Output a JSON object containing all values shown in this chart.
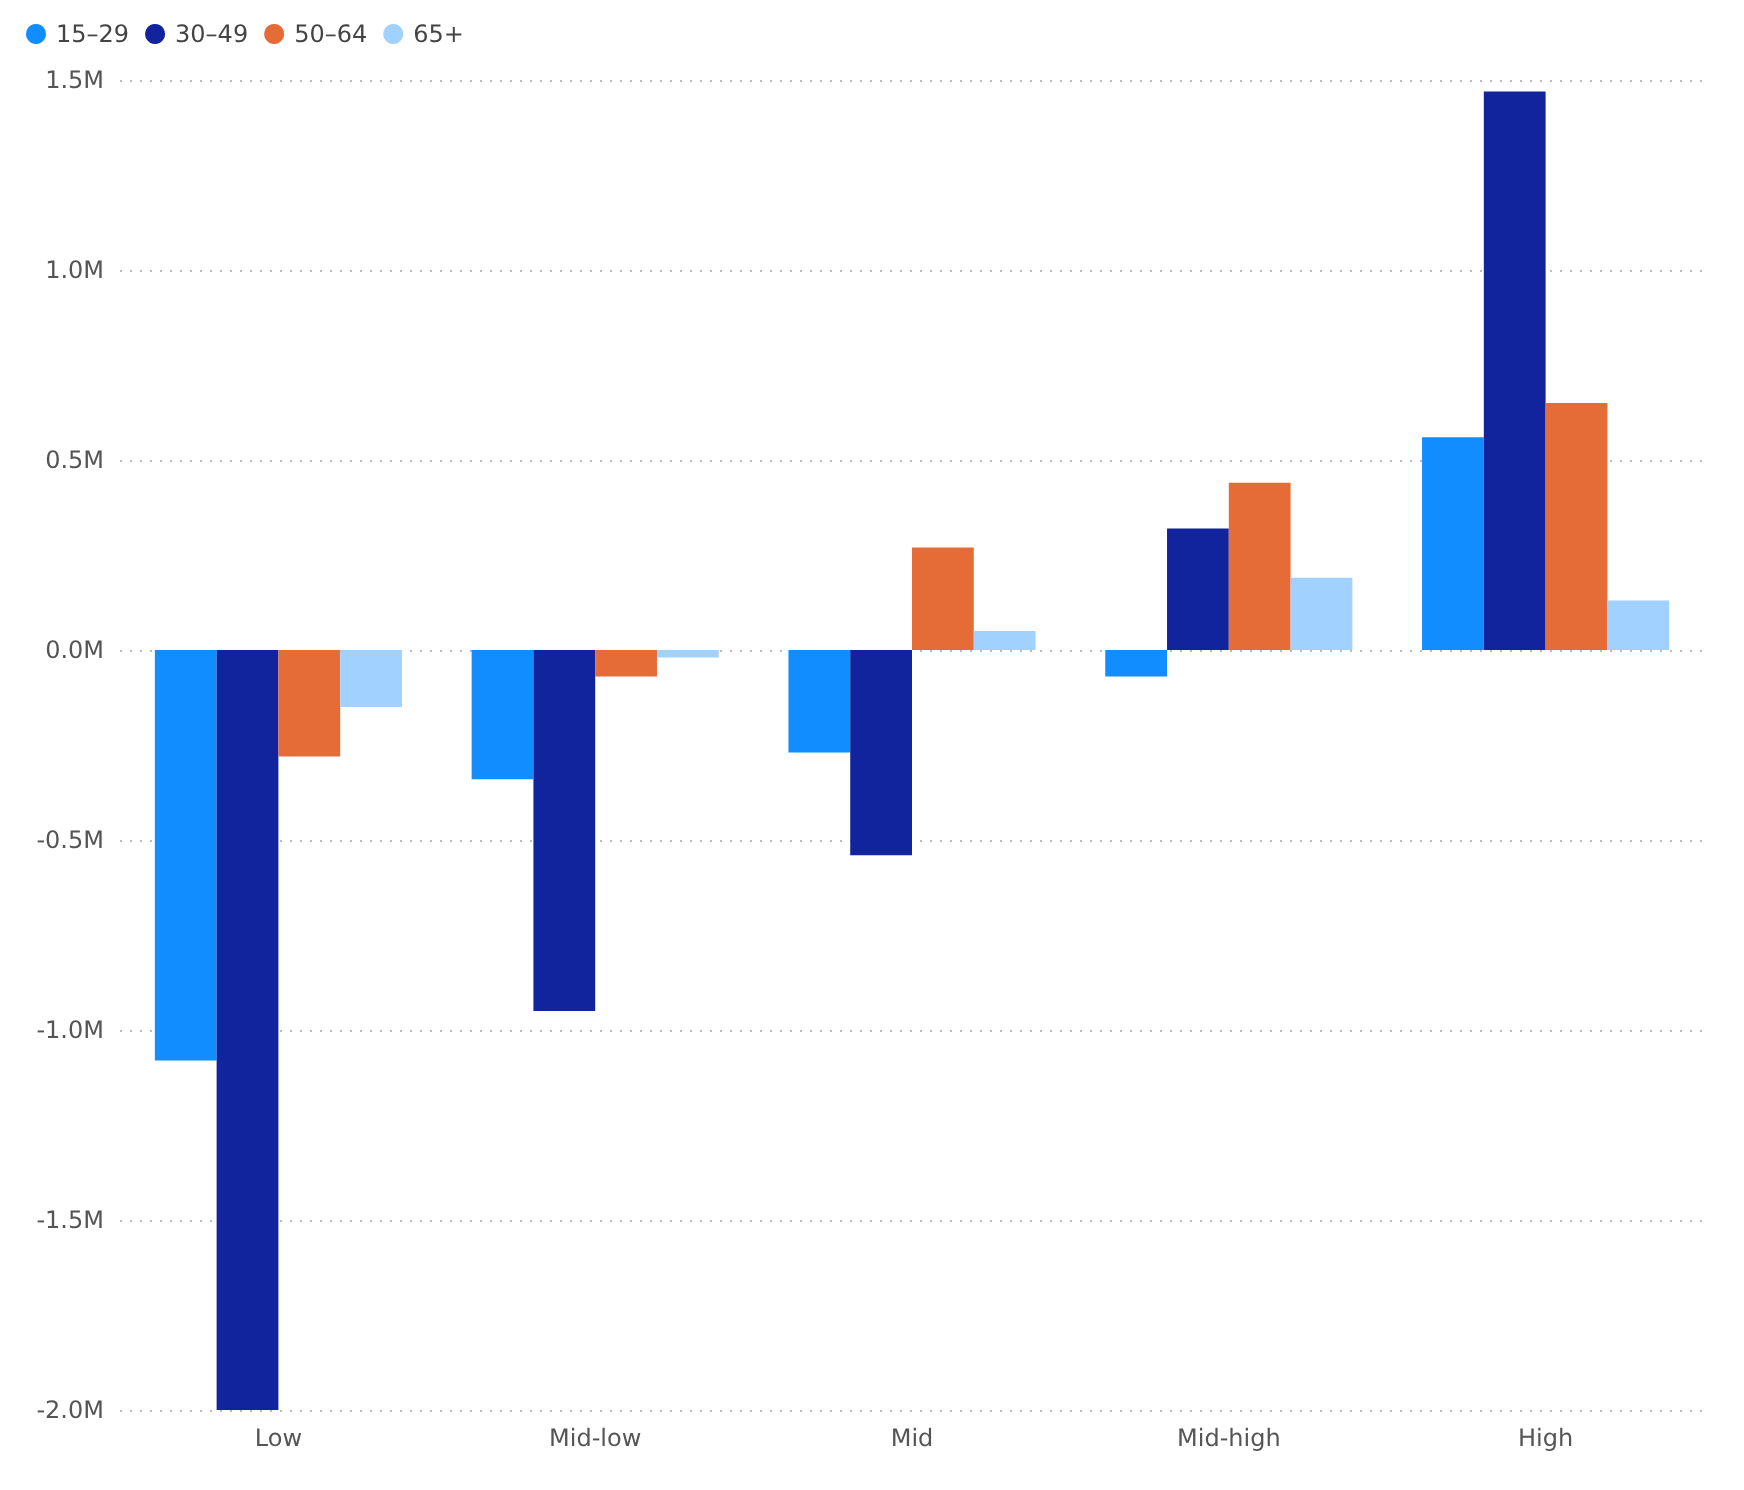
{
  "chart_data": {
    "type": "bar",
    "categories": [
      "Low",
      "Mid-low",
      "Mid",
      "Mid-high",
      "High"
    ],
    "series": [
      {
        "name": "15–29",
        "color": "#118dff",
        "values": [
          -1.08,
          -0.34,
          -0.27,
          -0.07,
          0.56
        ]
      },
      {
        "name": "30–49",
        "color": "#12239e",
        "values": [
          -2.0,
          -0.95,
          -0.54,
          0.32,
          1.47
        ]
      },
      {
        "name": "50–64",
        "color": "#e66c37",
        "values": [
          -0.28,
          -0.07,
          0.27,
          0.44,
          0.65
        ]
      },
      {
        "name": "65+",
        "color": "#a0d1ff",
        "values": [
          -0.15,
          -0.02,
          0.05,
          0.19,
          0.13
        ]
      }
    ],
    "ylim": [
      -2.0,
      1.5
    ],
    "yticks": [
      {
        "value": -2.0,
        "label": "-2.0M"
      },
      {
        "value": -1.5,
        "label": "-1.5M"
      },
      {
        "value": -1.0,
        "label": "-1.0M"
      },
      {
        "value": -0.5,
        "label": "-0.5M"
      },
      {
        "value": 0,
        "label": "0.0M"
      },
      {
        "value": 0.5,
        "label": "0.5M"
      },
      {
        "value": 1.0,
        "label": "1.0M"
      },
      {
        "value": 1.5,
        "label": "1.5M"
      }
    ],
    "grid": "y",
    "legend": "top left"
  }
}
